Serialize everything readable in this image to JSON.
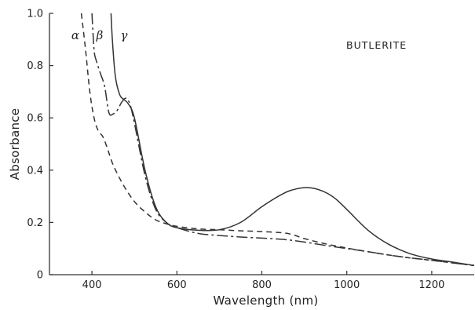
{
  "chart_data": {
    "type": "line",
    "title": "",
    "xlabel": "Wavelength (nm)",
    "ylabel": "Absorbance",
    "xlim": [
      300,
      1300
    ],
    "ylim": [
      0,
      1.0
    ],
    "x_ticks": [
      400,
      600,
      800,
      1000,
      1200
    ],
    "y_ticks": [
      0,
      0.2,
      0.4,
      0.6,
      0.8,
      1.0
    ],
    "x_tick_labels": [
      "400",
      "600",
      "800",
      "1000",
      "1200"
    ],
    "y_tick_labels": [
      "0",
      "0.2",
      "0.4",
      "0.6",
      "0.8",
      "1.0"
    ],
    "grid": false,
    "annotation": "BUTLERITE",
    "series": [
      {
        "name": "α",
        "style": "dashed",
        "color": "#333333",
        "x": [
          375,
          385,
          395,
          405,
          415,
          425,
          435,
          450,
          475,
          500,
          525,
          550,
          575,
          600,
          650,
          700,
          750,
          800,
          850,
          875,
          900,
          950,
          1000,
          1050,
          1100,
          1150,
          1200,
          1250,
          1300
        ],
        "y": [
          1.0,
          0.86,
          0.7,
          0.6,
          0.55,
          0.53,
          0.49,
          0.42,
          0.34,
          0.28,
          0.24,
          0.21,
          0.195,
          0.185,
          0.175,
          0.172,
          0.168,
          0.165,
          0.16,
          0.152,
          0.138,
          0.118,
          0.102,
          0.088,
          0.075,
          0.064,
          0.055,
          0.045,
          0.035
        ]
      },
      {
        "name": "β",
        "style": "dash-dot",
        "color": "#333333",
        "x": [
          400,
          405,
          410,
          420,
          430,
          440,
          450,
          460,
          470,
          480,
          490,
          500,
          525,
          550,
          575,
          600,
          650,
          700,
          750,
          800,
          850,
          900,
          950,
          1000,
          1050,
          1100,
          1150,
          1200,
          1250,
          1300
        ],
        "y": [
          1.0,
          0.86,
          0.82,
          0.77,
          0.72,
          0.62,
          0.615,
          0.63,
          0.66,
          0.675,
          0.65,
          0.58,
          0.38,
          0.25,
          0.2,
          0.18,
          0.158,
          0.15,
          0.144,
          0.14,
          0.135,
          0.125,
          0.112,
          0.1,
          0.088,
          0.075,
          0.064,
          0.055,
          0.045,
          0.035
        ]
      },
      {
        "name": "γ",
        "style": "solid",
        "color": "#333333",
        "x": [
          445,
          448,
          455,
          465,
          475,
          485,
          500,
          525,
          550,
          575,
          600,
          650,
          700,
          750,
          800,
          850,
          880,
          910,
          940,
          970,
          1000,
          1050,
          1100,
          1150,
          1200,
          1250,
          1300
        ],
        "y": [
          1.0,
          0.9,
          0.76,
          0.69,
          0.67,
          0.655,
          0.6,
          0.4,
          0.26,
          0.2,
          0.18,
          0.17,
          0.172,
          0.2,
          0.26,
          0.31,
          0.328,
          0.333,
          0.322,
          0.295,
          0.25,
          0.17,
          0.115,
          0.08,
          0.06,
          0.048,
          0.035
        ]
      }
    ]
  }
}
